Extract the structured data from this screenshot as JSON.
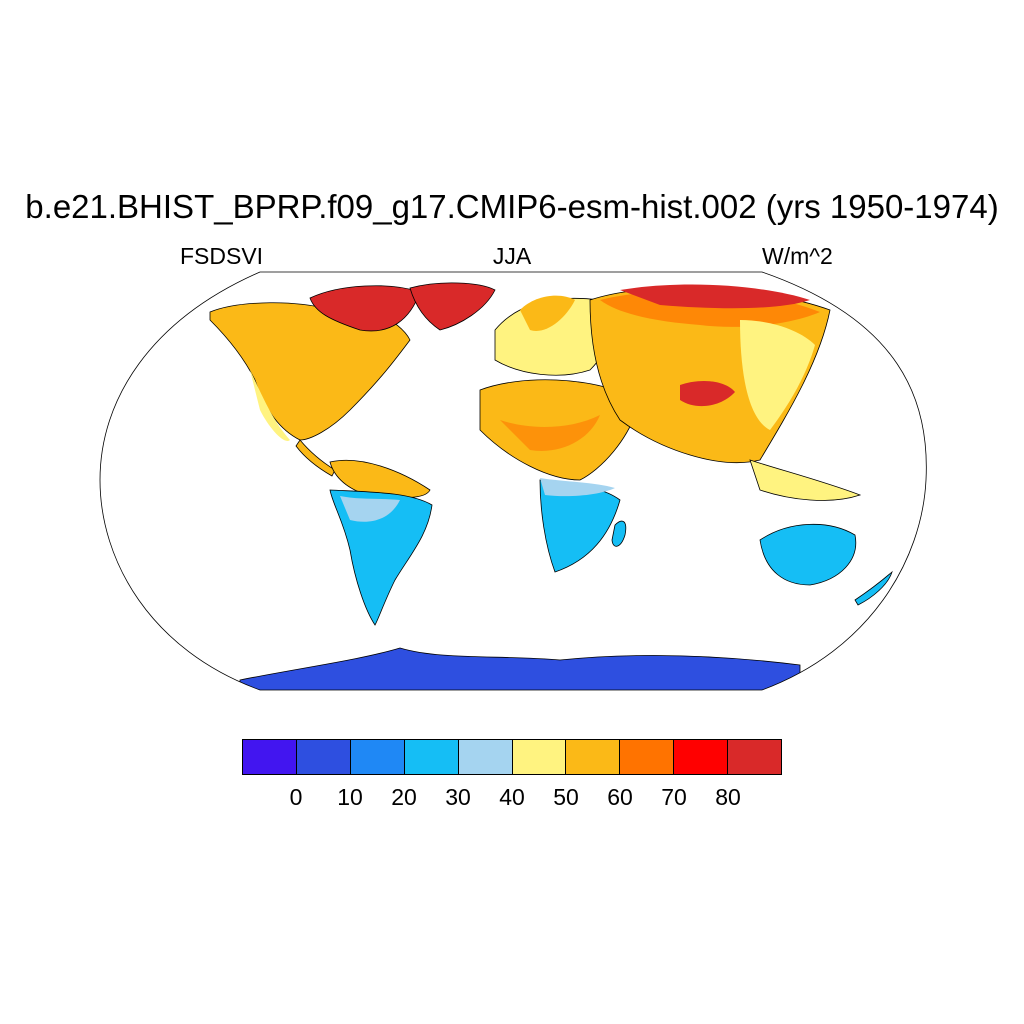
{
  "header": {
    "title": "b.e21.BHIST_BPRP.f09_g17.CMIP6-esm-hist.002 (yrs 1950-1974)",
    "variable": "FSDSVI",
    "season": "JJA",
    "units": "W/m^2"
  },
  "colorbar": {
    "colors": [
      "#4215F0",
      "#2E4FE0",
      "#1F88F5",
      "#15BEF5",
      "#A5D4F0",
      "#FFF380",
      "#FBB917",
      "#FF7300",
      "#FF0000",
      "#D92929"
    ],
    "labels": [
      "0",
      "10",
      "20",
      "30",
      "40",
      "50",
      "60",
      "70",
      "80"
    ]
  }
}
